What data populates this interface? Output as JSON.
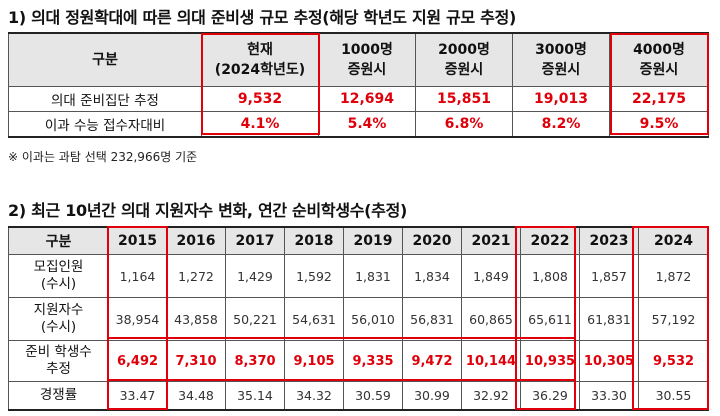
{
  "section1": {
    "title": "1) 의대 정원확대에 따른 의대 준비생 규모 추정(해당 학년도 지원 규모 추정)",
    "header": {
      "label": "구분",
      "current_line1": "현재",
      "current_line2": "(2024학년도)",
      "cols": [
        {
          "line1": "1000명",
          "line2": "증원시"
        },
        {
          "line1": "2000명",
          "line2": "증원시"
        },
        {
          "line1": "3000명",
          "line2": "증원시"
        },
        {
          "line1": "4000명",
          "line2": "증원시"
        }
      ]
    },
    "rows": [
      {
        "label": "의대 준비집단 추정",
        "values": [
          "9,532",
          "12,694",
          "15,851",
          "19,013",
          "22,175"
        ]
      },
      {
        "label": "이과 수능 접수자대비",
        "values": [
          "4.1%",
          "5.4%",
          "6.8%",
          "8.2%",
          "9.5%"
        ]
      }
    ],
    "note": "※ 이과는 과탐 선택 232,966명 기준"
  },
  "section2": {
    "title": "2) 최근 10년간 의대 지원자수 변화, 연간 순비학생수(추정)",
    "header_label": "구분",
    "years": [
      "2015",
      "2016",
      "2017",
      "2018",
      "2019",
      "2020",
      "2021",
      "2022",
      "2023",
      "2024"
    ],
    "rows": [
      {
        "label_line1": "모집인원",
        "label_line2": "(수시)",
        "values": [
          "1,164",
          "1,272",
          "1,429",
          "1,592",
          "1,831",
          "1,834",
          "1,849",
          "1,808",
          "1,857",
          "1,872"
        ]
      },
      {
        "label_line1": "지원자수",
        "label_line2": "(수시)",
        "values": [
          "38,954",
          "43,858",
          "50,221",
          "54,631",
          "56,010",
          "56,831",
          "60,865",
          "65,611",
          "61,831",
          "57,192"
        ]
      },
      {
        "label_line1": "준비 학생수",
        "label_line2": "추정",
        "values": [
          "6,492",
          "7,310",
          "8,370",
          "9,105",
          "9,335",
          "9,472",
          "10,144",
          "10,935",
          "10,305",
          "9,532"
        ]
      },
      {
        "label_line1": "경쟁률",
        "label_line2": "",
        "values": [
          "33.47",
          "34.48",
          "35.14",
          "34.32",
          "30.59",
          "30.99",
          "32.92",
          "36.29",
          "33.30",
          "30.55"
        ]
      }
    ]
  },
  "colors": {
    "highlight": "#e0000b",
    "header_bg": "#e6e6e6"
  }
}
